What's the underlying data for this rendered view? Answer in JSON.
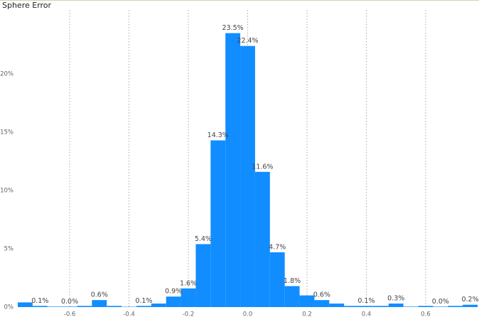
{
  "chart_data": {
    "type": "histogram",
    "title": "Sphere Error",
    "color": "#118dff",
    "bins": [
      -0.775,
      -0.725,
      -0.675,
      -0.625,
      -0.575,
      -0.525,
      -0.475,
      -0.425,
      -0.375,
      -0.325,
      -0.275,
      -0.225,
      -0.175,
      -0.125,
      -0.075,
      -0.025,
      0.025,
      0.075,
      0.125,
      0.175,
      0.225,
      0.275,
      0.325,
      0.375,
      0.425,
      0.475,
      0.525,
      0.575,
      0.625,
      0.675,
      0.725,
      0.775
    ],
    "values": [
      0.4,
      0.1,
      0.04,
      0.04,
      0.1,
      0.6,
      0.1,
      0.03,
      0.1,
      0.3,
      0.9,
      1.6,
      5.4,
      14.3,
      23.5,
      22.4,
      11.6,
      4.7,
      1.8,
      1.0,
      0.6,
      0.3,
      0.1,
      0.1,
      0.1,
      0.3,
      0.04,
      0.1,
      0.04,
      0.1,
      0.2
    ],
    "value_labels": [
      null,
      "0.1%",
      null,
      "0.0%",
      null,
      "0.6%",
      null,
      null,
      "0.1%",
      null,
      "0.9%",
      "1.6%",
      "5.4%",
      "14.3%",
      "23.5%",
      "22.4%",
      "11.6%",
      "4.7%",
      "1.8%",
      null,
      "0.6%",
      null,
      null,
      "0.1%",
      null,
      "0.3%",
      null,
      null,
      "0.0%",
      null,
      "0.2%"
    ],
    "xlim": [
      -0.775,
      0.775
    ],
    "xticks": [
      -0.6,
      -0.4,
      -0.2,
      {
        "value": 0,
        "label": "0.0"
      },
      0.2,
      0.4,
      0.6
    ],
    "ylim": [
      0,
      25
    ],
    "yticks": [
      {
        "value": 0,
        "label": "0%"
      },
      {
        "value": 5,
        "label": "5%"
      },
      {
        "value": 10,
        "label": "10%"
      },
      {
        "value": 15,
        "label": "15%"
      },
      {
        "value": 20,
        "label": "20%"
      }
    ],
    "grid": true
  }
}
